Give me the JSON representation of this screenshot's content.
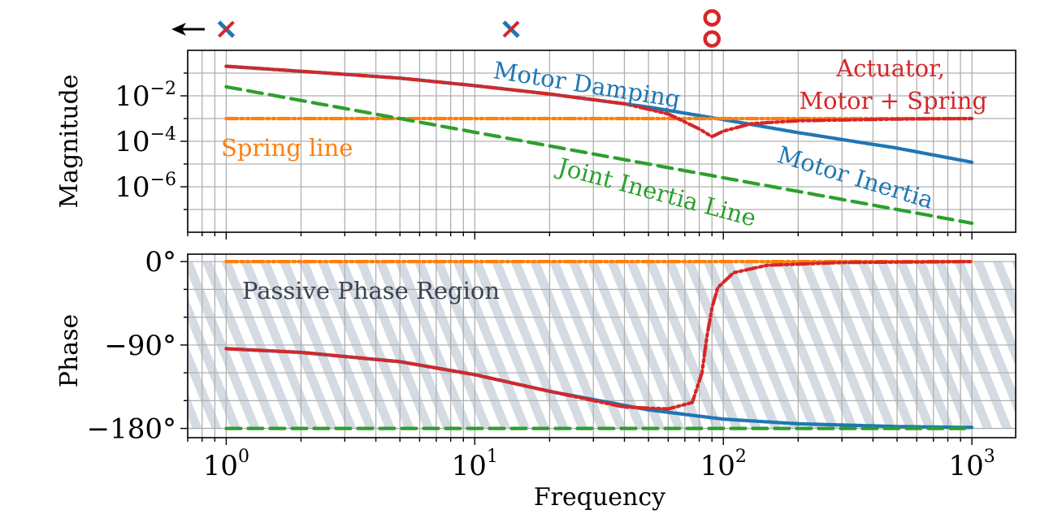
{
  "chart_data": [
    {
      "type": "line",
      "panel": "magnitude",
      "xlabel": "",
      "ylabel": "Magnitude",
      "xscale": "log",
      "yscale": "log",
      "xlim": [
        0.7,
        1500
      ],
      "ylim": [
        1e-08,
        1
      ],
      "yticks": [
        "10^{-2}",
        "10^{-4}",
        "10^{-6}"
      ],
      "grid": true,
      "series": [
        {
          "key": "motor",
          "color": "#1f77b4",
          "style": "solid",
          "x": [
            1,
            2,
            5,
            10,
            20,
            50,
            100,
            200,
            500,
            1000
          ],
          "y": [
            0.2,
            0.12,
            0.06,
            0.028,
            0.012,
            0.0032,
            0.0009,
            0.00024,
            5e-05,
            1.2e-05
          ]
        },
        {
          "key": "spring",
          "color": "#ff7f0e",
          "style": "dashdot",
          "x": [
            1,
            1000
          ],
          "y": [
            0.001,
            0.001
          ]
        },
        {
          "key": "joint",
          "color": "#2ca02c",
          "style": "dashed",
          "x": [
            1,
            10,
            100,
            1000
          ],
          "y": [
            0.025,
            0.00025,
            2.5e-06,
            2.5e-08
          ]
        },
        {
          "key": "actuator",
          "color": "#d62728",
          "style": "dashdot",
          "x": [
            1,
            2,
            5,
            10,
            20,
            40,
            60,
            80,
            90,
            100,
            130,
            200,
            500,
            1000
          ],
          "y": [
            0.2,
            0.12,
            0.06,
            0.028,
            0.012,
            0.0045,
            0.0016,
            0.00035,
            0.00016,
            0.00028,
            0.0006,
            0.0008,
            0.00095,
            0.001
          ]
        }
      ],
      "annotations": [
        {
          "text": "Motor Damping",
          "color": "#1f77b4"
        },
        {
          "text": "Motor Inertia",
          "color": "#1f77b4"
        },
        {
          "text": "Spring line",
          "color": "#ff7f0e"
        },
        {
          "text": "Joint Inertia Line",
          "color": "#2ca02c"
        },
        {
          "text": "Actuator,",
          "color": "#d62728"
        },
        {
          "text": "Motor + Spring",
          "color": "#d62728"
        }
      ],
      "markers": [
        {
          "kind": "pole",
          "x": 1
        },
        {
          "kind": "pole",
          "x": 14
        },
        {
          "kind": "zero",
          "x": 90
        },
        {
          "kind": "zero",
          "x": 90
        }
      ]
    },
    {
      "type": "line",
      "panel": "phase",
      "xlabel": "Frequency",
      "ylabel": "Phase",
      "xscale": "log",
      "xlim": [
        0.7,
        1500
      ],
      "ylim": [
        -190,
        8
      ],
      "xticks": [
        {
          "base": "10",
          "exp": "0"
        },
        {
          "base": "10",
          "exp": "1"
        },
        {
          "base": "10",
          "exp": "2"
        },
        {
          "base": "10",
          "exp": "3"
        }
      ],
      "yticks": [
        "0°",
        "−90°",
        "−180°"
      ],
      "grid": true,
      "region": {
        "label": "Passive Phase Region",
        "from": -180,
        "to": 0,
        "fill": "#d5dbe3"
      },
      "series": [
        {
          "key": "motor",
          "color": "#1f77b4",
          "style": "solid",
          "x": [
            1,
            2,
            5,
            10,
            20,
            50,
            100,
            200,
            500,
            1000
          ],
          "y": [
            -94,
            -98,
            -108,
            -122,
            -140,
            -160,
            -170,
            -175,
            -178,
            -179
          ]
        },
        {
          "key": "spring",
          "color": "#ff7f0e",
          "style": "dashdot",
          "x": [
            1,
            1000
          ],
          "y": [
            0,
            0
          ]
        },
        {
          "key": "joint",
          "color": "#2ca02c",
          "style": "dashed",
          "x": [
            1,
            1000
          ],
          "y": [
            -180,
            -180
          ]
        },
        {
          "key": "actuator",
          "color": "#d62728",
          "style": "dashdot",
          "x": [
            1,
            2,
            5,
            10,
            20,
            40,
            60,
            75,
            82,
            86,
            90,
            95,
            110,
            150,
            300,
            1000
          ],
          "y": [
            -94,
            -98,
            -108,
            -122,
            -140,
            -157,
            -159,
            -152,
            -120,
            -80,
            -50,
            -28,
            -12,
            -4,
            -1,
            0
          ]
        }
      ]
    }
  ]
}
